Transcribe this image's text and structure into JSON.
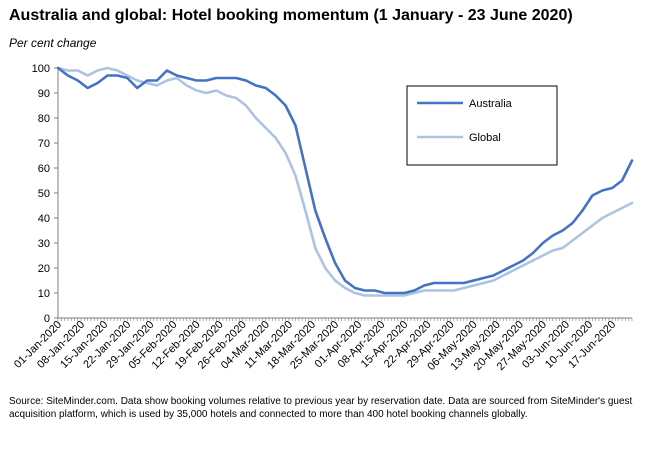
{
  "title": "Australia and global: Hotel booking momentum (1 January - 23 June 2020)",
  "subtitle": "Per cent change",
  "source": "Source: SiteMinder.com. Data show booking volumes relative to previous year by reservation date. Data are sourced from SiteMinder's guest acquisition platform, which is used by 35,000 hotels and connected to more than 400 hotel booking channels globally.",
  "colors": {
    "australia": "#4472c4",
    "global": "#adc3e2",
    "axis": "#7f7f7f"
  },
  "chart_data": {
    "type": "line",
    "title": "Australia and global: Hotel booking momentum (1 January - 23 June 2020)",
    "ylabel": "Per cent change",
    "xlabel": "",
    "ylim": [
      0,
      100
    ],
    "yticks": [
      0,
      10,
      20,
      30,
      40,
      50,
      60,
      70,
      80,
      90,
      100
    ],
    "x_start": "2020-01-01",
    "x_end": "2020-06-23",
    "xtick_labels": [
      "01-Jan-2020",
      "08-Jan-2020",
      "15-Jan-2020",
      "22-Jan-2020",
      "29-Jan-2020",
      "05-Feb-2020",
      "12-Feb-2020",
      "19-Feb-2020",
      "26-Feb-2020",
      "04-Mar-2020",
      "11-Mar-2020",
      "18-Mar-2020",
      "25-Mar-2020",
      "01-Apr-2020",
      "08-Apr-2020",
      "15-Apr-2020",
      "22-Apr-2020",
      "29-Apr-2020",
      "06-May-2020",
      "13-May-2020",
      "20-May-2020",
      "27-May-2020",
      "03-Jun-2020",
      "10-Jun-2020",
      "17-Jun-2020"
    ],
    "grid": false,
    "legend": {
      "placement": "upper-right",
      "entries": [
        "Australia",
        "Global"
      ]
    },
    "x": [
      "2020-01-01",
      "2020-01-04",
      "2020-01-07",
      "2020-01-10",
      "2020-01-13",
      "2020-01-16",
      "2020-01-19",
      "2020-01-22",
      "2020-01-25",
      "2020-01-28",
      "2020-01-31",
      "2020-02-03",
      "2020-02-06",
      "2020-02-09",
      "2020-02-12",
      "2020-02-15",
      "2020-02-18",
      "2020-02-21",
      "2020-02-24",
      "2020-02-27",
      "2020-03-01",
      "2020-03-04",
      "2020-03-07",
      "2020-03-10",
      "2020-03-13",
      "2020-03-16",
      "2020-03-19",
      "2020-03-22",
      "2020-03-25",
      "2020-03-28",
      "2020-03-31",
      "2020-04-03",
      "2020-04-06",
      "2020-04-09",
      "2020-04-12",
      "2020-04-15",
      "2020-04-18",
      "2020-04-21",
      "2020-04-24",
      "2020-04-27",
      "2020-04-30",
      "2020-05-03",
      "2020-05-06",
      "2020-05-09",
      "2020-05-12",
      "2020-05-15",
      "2020-05-18",
      "2020-05-21",
      "2020-05-24",
      "2020-05-27",
      "2020-05-30",
      "2020-06-02",
      "2020-06-05",
      "2020-06-08",
      "2020-06-11",
      "2020-06-14",
      "2020-06-17",
      "2020-06-20",
      "2020-06-23"
    ],
    "series": [
      {
        "name": "Australia",
        "values": [
          100,
          97,
          95,
          92,
          94,
          97,
          97,
          96,
          92,
          95,
          95,
          99,
          97,
          96,
          95,
          95,
          96,
          96,
          96,
          95,
          93,
          92,
          89,
          85,
          77,
          60,
          43,
          32,
          22,
          15,
          12,
          11,
          11,
          10,
          10,
          10,
          11,
          13,
          14,
          14,
          14,
          14,
          15,
          16,
          17,
          19,
          21,
          23,
          26,
          30,
          33,
          35,
          38,
          43,
          49,
          51,
          52,
          55,
          63
        ]
      },
      {
        "name": "Global",
        "values": [
          100,
          99,
          99,
          97,
          99,
          100,
          99,
          97,
          95,
          94,
          93,
          95,
          96,
          93,
          91,
          90,
          91,
          89,
          88,
          85,
          80,
          76,
          72,
          66,
          57,
          43,
          28,
          20,
          15,
          12,
          10,
          9,
          9,
          9,
          9,
          9,
          10,
          11,
          11,
          11,
          11,
          12,
          13,
          14,
          15,
          17,
          19,
          21,
          23,
          25,
          27,
          28,
          31,
          34,
          37,
          40,
          42,
          44,
          46
        ]
      }
    ]
  }
}
